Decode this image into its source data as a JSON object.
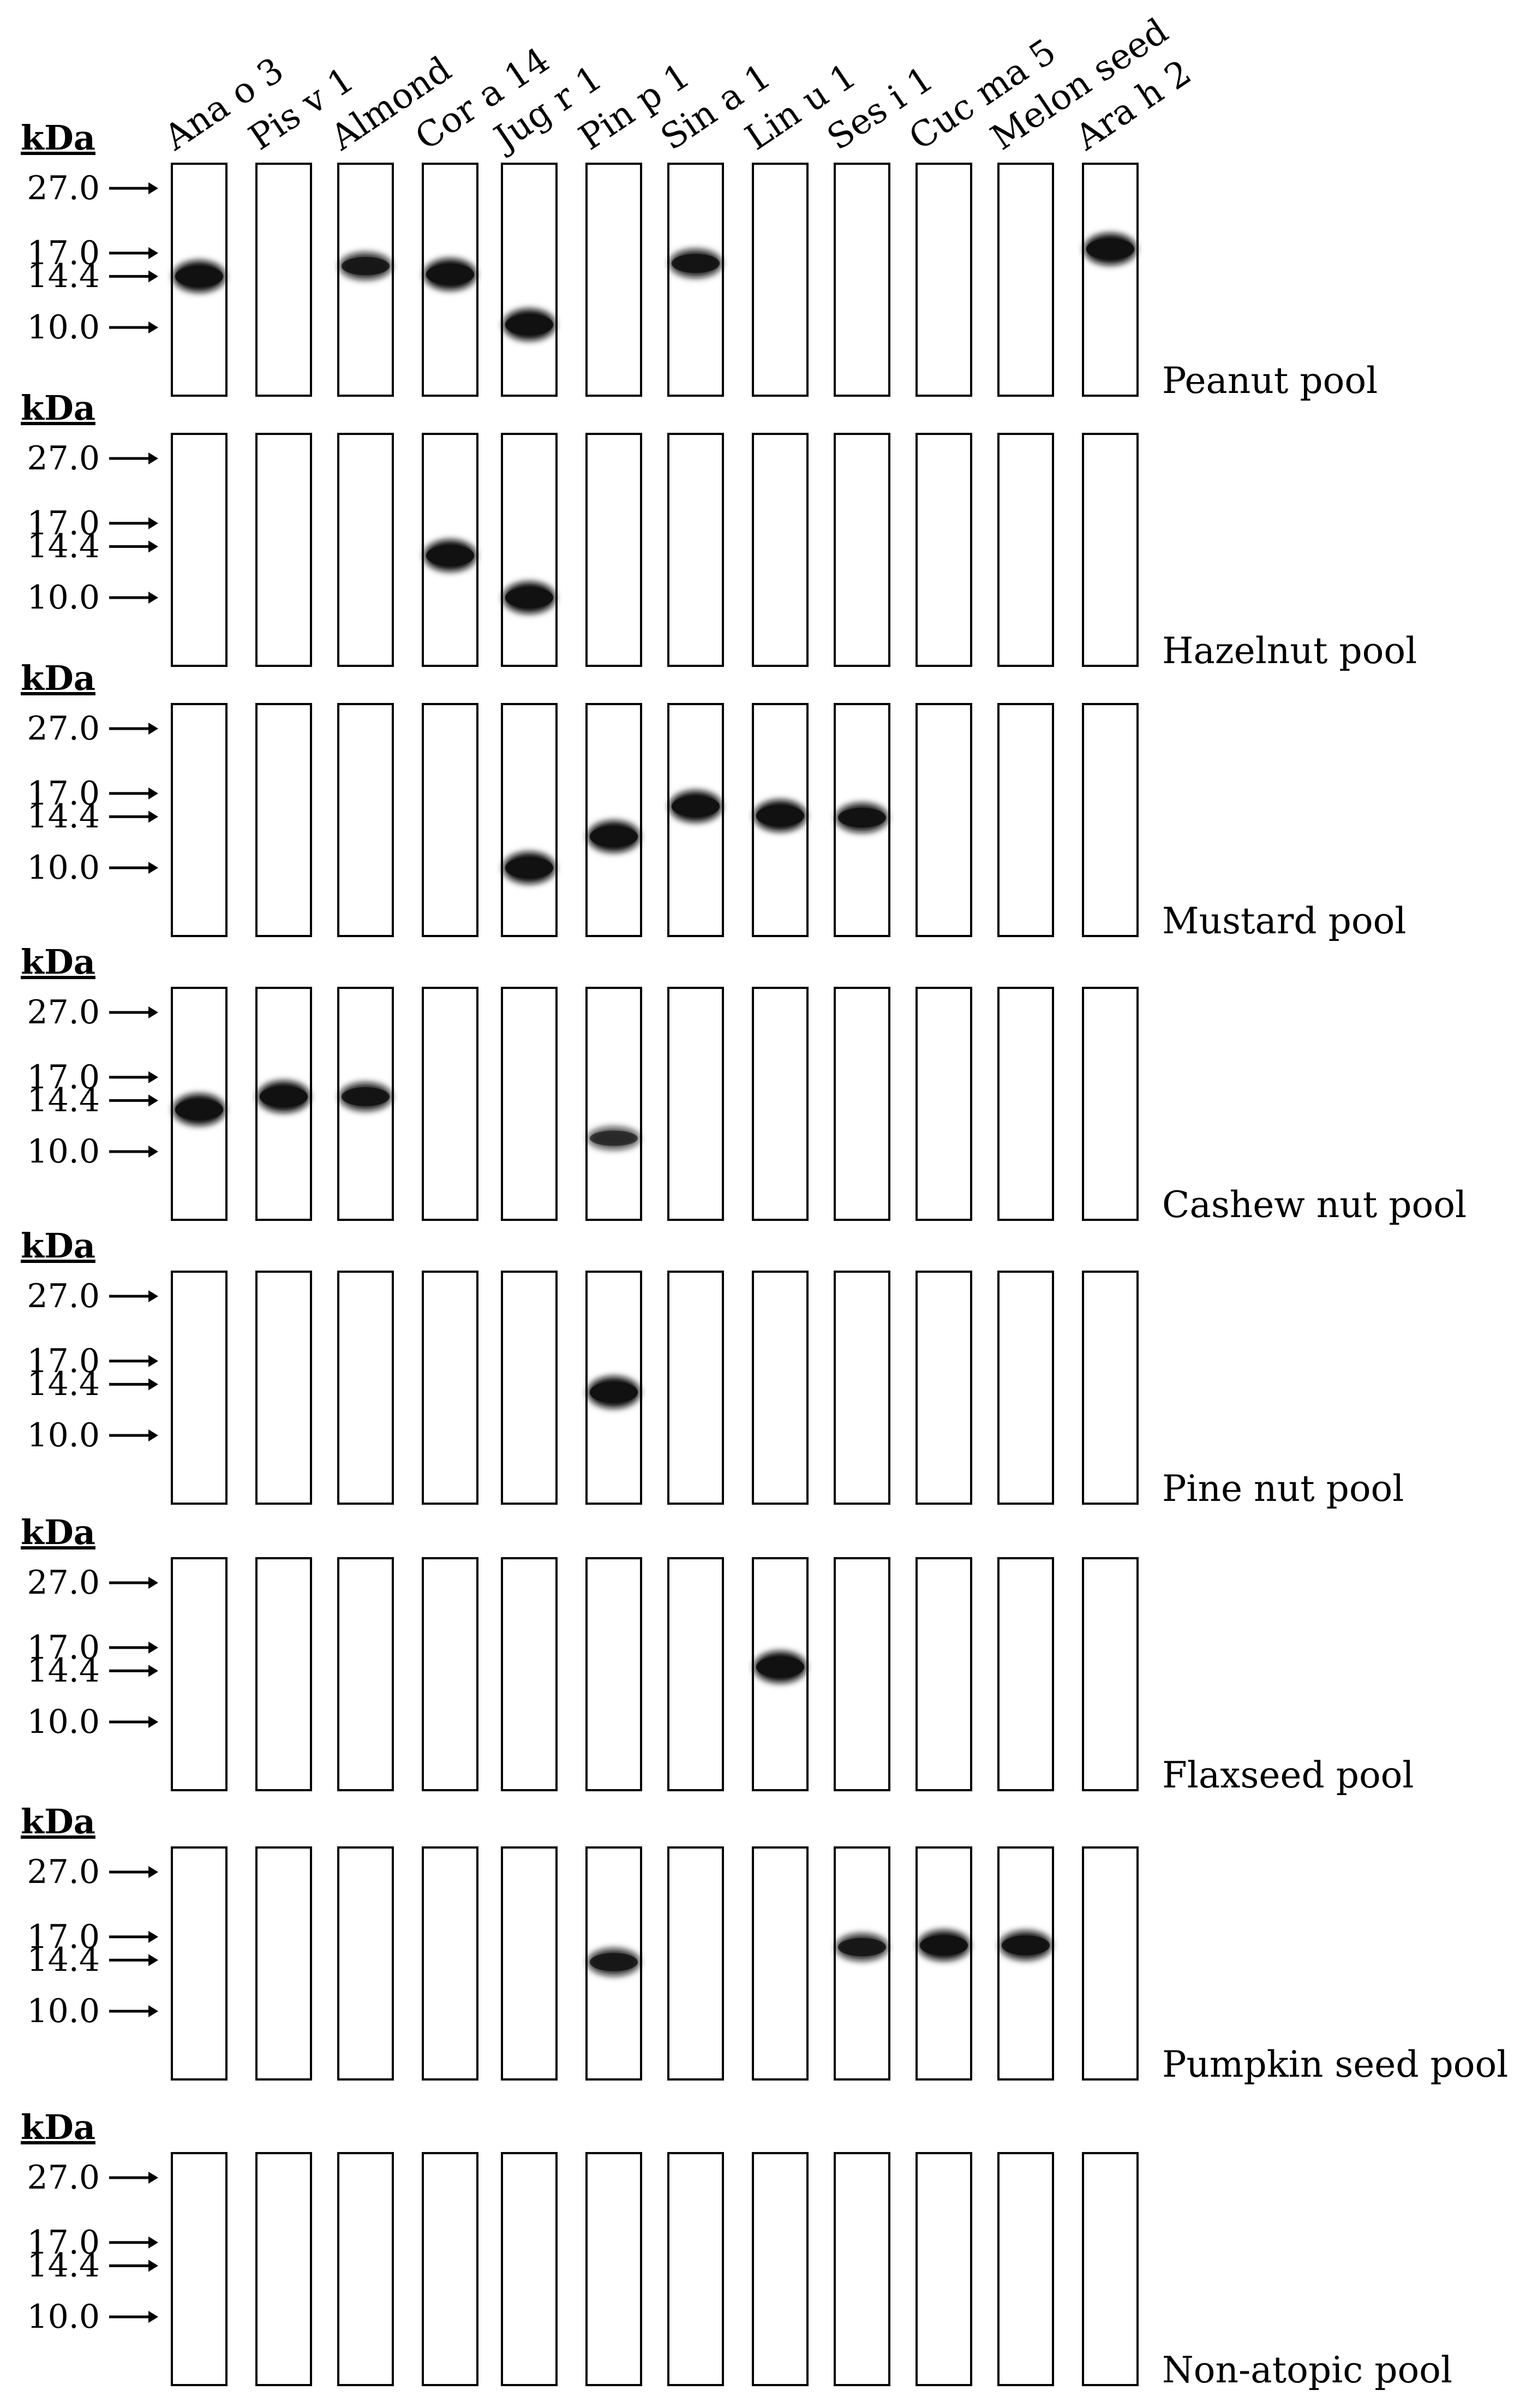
{
  "columns": [
    "Ana o 3",
    "Pis v 1",
    "Almond",
    "Cor a 14",
    "Jug r 1",
    "Pin p 1",
    "Sin a 1",
    "Lin u 1",
    "Ses i 1",
    "Cuc ma 5",
    "Melon seed",
    "Ara h 2"
  ],
  "unit_label": "kDa",
  "markers": [
    {
      "label": "27.0",
      "kda": 27.0
    },
    {
      "label": "17.0",
      "kda": 17.0
    },
    {
      "label": "14.4",
      "kda": 14.4
    },
    {
      "label": "10.0",
      "kda": 10.0
    }
  ],
  "pools": [
    {
      "name": "Peanut pool",
      "bands": [
        {
          "lane": 0,
          "kda": 14.4,
          "strength": 1.0
        },
        {
          "lane": 2,
          "kda": 15.5,
          "strength": 0.8
        },
        {
          "lane": 3,
          "kda": 14.6,
          "strength": 1.0
        },
        {
          "lane": 4,
          "kda": 10.2,
          "strength": 1.0
        },
        {
          "lane": 6,
          "kda": 15.8,
          "strength": 0.85
        },
        {
          "lane": 11,
          "kda": 17.5,
          "strength": 1.0
        }
      ]
    },
    {
      "name": "Hazelnut pool",
      "bands": [
        {
          "lane": 3,
          "kda": 13.5,
          "strength": 1.0
        },
        {
          "lane": 4,
          "kda": 10.0,
          "strength": 1.0
        }
      ]
    },
    {
      "name": "Mustard pool",
      "bands": [
        {
          "lane": 4,
          "kda": 10.0,
          "strength": 1.0
        },
        {
          "lane": 5,
          "kda": 12.5,
          "strength": 1.0
        },
        {
          "lane": 6,
          "kda": 15.5,
          "strength": 1.0
        },
        {
          "lane": 7,
          "kda": 14.5,
          "strength": 1.0
        },
        {
          "lane": 8,
          "kda": 14.3,
          "strength": 0.9
        }
      ]
    },
    {
      "name": "Cashew nut pool",
      "bands": [
        {
          "lane": 0,
          "kda": 13.5,
          "strength": 1.0
        },
        {
          "lane": 1,
          "kda": 14.8,
          "strength": 1.0
        },
        {
          "lane": 2,
          "kda": 14.8,
          "strength": 0.85
        },
        {
          "lane": 5,
          "kda": 11.0,
          "strength": 0.6
        }
      ]
    },
    {
      "name": "Pine nut pool",
      "bands": [
        {
          "lane": 5,
          "kda": 13.6,
          "strength": 1.0
        }
      ]
    },
    {
      "name": "Flaxseed pool",
      "bands": [
        {
          "lane": 7,
          "kda": 14.8,
          "strength": 1.0
        }
      ]
    },
    {
      "name": "Pumpkin seed pool",
      "bands": [
        {
          "lane": 5,
          "kda": 14.2,
          "strength": 0.8
        },
        {
          "lane": 8,
          "kda": 15.8,
          "strength": 0.8
        },
        {
          "lane": 9,
          "kda": 16.0,
          "strength": 0.95
        },
        {
          "lane": 10,
          "kda": 16.0,
          "strength": 0.9
        }
      ]
    },
    {
      "name": "Non-atopic pool",
      "bands": []
    }
  ],
  "colors": {
    "ink": "#000000",
    "background": "#ffffff",
    "band": "#111111"
  }
}
